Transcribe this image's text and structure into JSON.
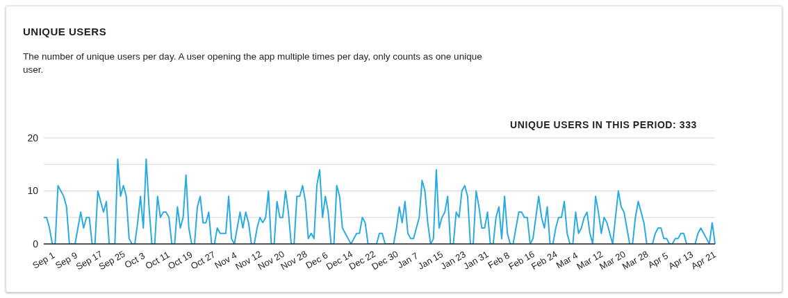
{
  "chart_data": {
    "type": "line",
    "title": "UNIQUE USERS",
    "subtitle": "The number of unique users per day. A user opening the app multiple times per day, only counts as one unique user.",
    "annotations": [
      "UNIQUE USERS IN THIS PERIOD: 333"
    ],
    "categories": [
      "Sep 1",
      null,
      null,
      null,
      null,
      null,
      null,
      null,
      "Sep 9",
      null,
      null,
      null,
      null,
      null,
      null,
      null,
      "Sep 17",
      null,
      null,
      null,
      null,
      null,
      null,
      null,
      "Sep 25",
      null,
      null,
      null,
      null,
      null,
      null,
      null,
      "Oct 3",
      null,
      null,
      null,
      null,
      null,
      null,
      null,
      "Oct 11",
      null,
      null,
      null,
      null,
      null,
      null,
      null,
      "Oct 19",
      null,
      null,
      null,
      null,
      null,
      null,
      null,
      "Oct 27",
      null,
      null,
      null,
      null,
      null,
      null,
      null,
      "Nov 4",
      null,
      null,
      null,
      null,
      null,
      null,
      null,
      "Nov 12",
      null,
      null,
      null,
      null,
      null,
      null,
      null,
      "Nov 20",
      null,
      null,
      null,
      null,
      null,
      null,
      null,
      "Nov 28",
      null,
      null,
      null,
      null,
      null,
      null,
      null,
      "Dec 6",
      null,
      null,
      null,
      null,
      null,
      null,
      null,
      "Dec 14",
      null,
      null,
      null,
      null,
      null,
      null,
      null,
      "Dec 22",
      null,
      null,
      null,
      null,
      null,
      null,
      null,
      "Dec 30",
      null,
      null,
      null,
      null,
      null,
      null,
      null,
      "Jan 7",
      null,
      null,
      null,
      null,
      null,
      null,
      null,
      "Jan 15",
      null,
      null,
      null,
      null,
      null,
      null,
      null,
      "Jan 23",
      null,
      null,
      null,
      null,
      null,
      null,
      null,
      "Jan 31",
      null,
      null,
      null,
      null,
      null,
      null,
      null,
      "Feb 8",
      null,
      null,
      null,
      null,
      null,
      null,
      null,
      "Feb 16",
      null,
      null,
      null,
      null,
      null,
      null,
      null,
      "Feb 24",
      null,
      null,
      null,
      null,
      null,
      null,
      null,
      "Mar 4",
      null,
      null,
      null,
      null,
      null,
      null,
      null,
      "Mar 12",
      null,
      null,
      null,
      null,
      null,
      null,
      null,
      "Mar 20",
      null,
      null,
      null,
      null,
      null,
      null,
      null,
      "Mar 28",
      null,
      null,
      null,
      null,
      null,
      null,
      null,
      "Apr 5",
      null,
      null,
      null,
      null,
      null,
      null,
      null,
      "Apr 13",
      null,
      null,
      null,
      null,
      null,
      null,
      null,
      "Apr 21",
      null,
      null,
      null,
      null
    ],
    "series": [
      {
        "color": "#29abe2",
        "values": [
          5,
          5,
          3,
          0,
          0,
          11,
          10,
          9,
          7,
          0,
          0,
          0,
          3,
          6,
          3,
          5,
          5,
          0,
          0,
          10,
          8,
          6,
          8,
          0,
          0,
          0,
          16,
          9,
          11,
          9,
          1,
          0,
          0,
          4,
          9,
          3,
          16,
          7,
          0,
          0,
          9,
          5,
          6,
          6,
          5,
          0,
          0,
          7,
          3,
          5,
          13,
          3,
          0,
          0,
          7,
          9,
          4,
          4,
          6,
          0,
          0,
          3,
          2,
          2,
          2,
          9,
          1,
          0,
          3,
          6,
          3,
          6,
          4,
          0,
          0,
          3,
          5,
          4,
          5,
          10,
          0,
          0,
          8,
          5,
          5,
          10,
          6,
          0,
          0,
          9,
          9,
          11,
          8,
          1,
          2,
          1,
          11,
          14,
          5,
          9,
          6,
          0,
          0,
          11,
          9,
          3,
          2,
          1,
          0,
          1,
          2,
          2,
          5,
          4,
          0,
          0,
          0,
          0,
          2,
          2,
          0,
          0,
          0,
          0,
          3,
          7,
          4,
          8,
          2,
          1,
          1,
          3,
          5,
          12,
          10,
          4,
          0,
          1,
          14,
          3,
          5,
          6,
          9,
          0,
          0,
          6,
          5,
          10,
          11,
          9,
          0,
          0,
          10,
          7,
          3,
          3,
          6,
          0,
          0,
          5,
          7,
          1,
          9,
          2,
          0,
          0,
          3,
          6,
          6,
          5,
          5,
          0,
          1,
          5,
          9,
          5,
          3,
          7,
          0,
          0,
          3,
          5,
          5,
          8,
          2,
          0,
          0,
          6,
          2,
          3,
          5,
          6,
          2,
          0,
          9,
          6,
          2,
          5,
          4,
          2,
          0,
          5,
          10,
          7,
          6,
          3,
          0,
          0,
          5,
          8,
          6,
          4,
          0,
          0,
          0,
          2,
          3,
          3,
          1,
          1,
          0,
          0,
          1,
          1,
          2,
          2,
          0,
          0,
          0,
          0,
          2,
          3,
          2,
          1,
          0,
          4,
          0
        ]
      }
    ],
    "ylim": [
      0,
      20
    ],
    "yticks": [
      0,
      {
        "value": 5,
        "label": null
      },
      10,
      {
        "value": 15,
        "label": null
      },
      20
    ],
    "grid": "y",
    "marker": "none",
    "line_style": "solid"
  }
}
